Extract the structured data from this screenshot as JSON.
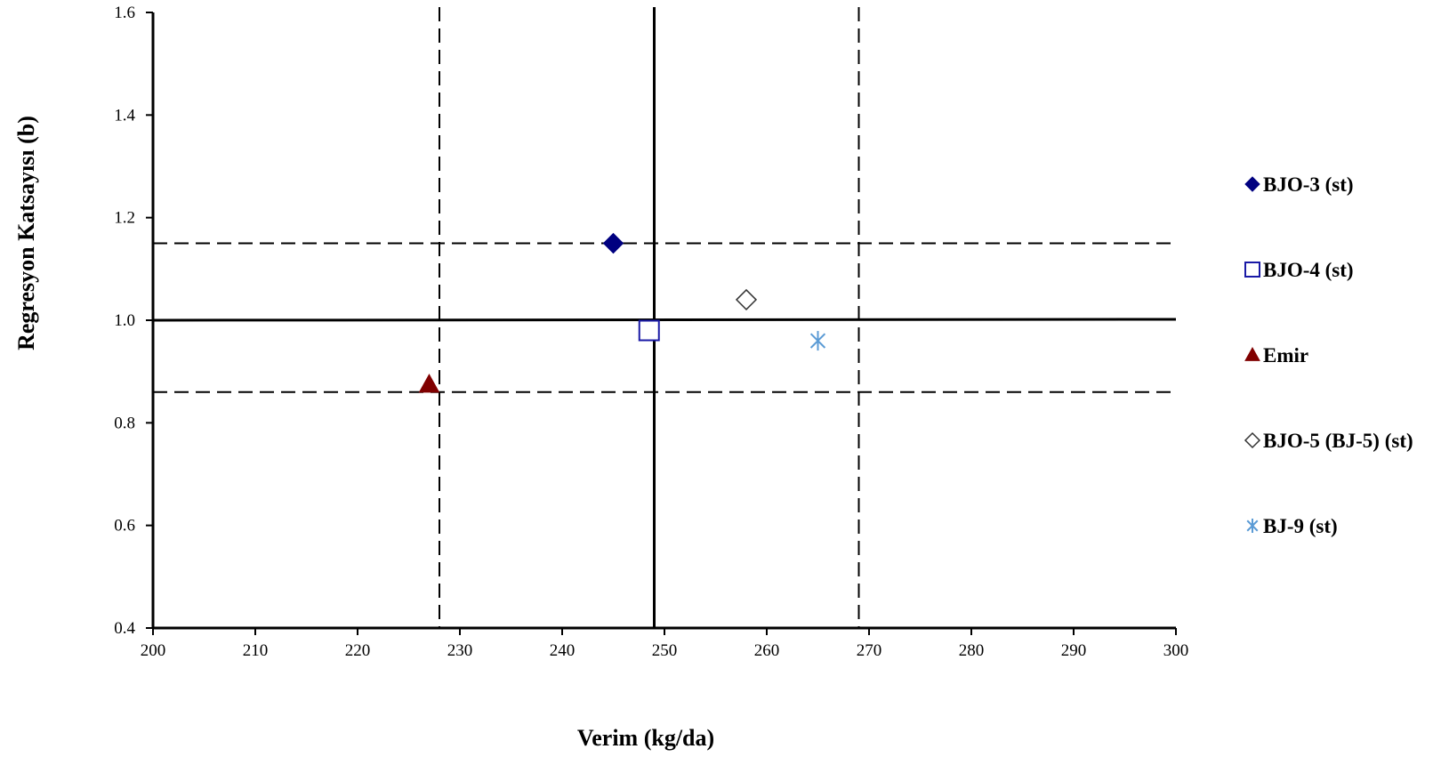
{
  "chart_data": {
    "type": "scatter",
    "title": "",
    "xlabel": "Verim (kg/da)",
    "ylabel": "Regresyon Katsayısı (b)",
    "xlim": [
      200,
      300
    ],
    "ylim": [
      0.4,
      1.6
    ],
    "xticks": [
      "200",
      "210",
      "220",
      "230",
      "240",
      "250",
      "260",
      "270",
      "280",
      "290",
      "300"
    ],
    "yticks": [
      "0.4",
      "0.6",
      "0.8",
      "1.0",
      "1.2",
      "1.4",
      "1.6"
    ],
    "grid": false,
    "legend_position": "right",
    "reference_lines": {
      "vertical_solid": 249,
      "vertical_dashed": [
        228,
        269
      ],
      "horizontal_solid": 1.0,
      "horizontal_dashed": [
        0.86,
        1.15
      ]
    },
    "series": [
      {
        "name": "BJO-3 (st)",
        "marker": "diamond-filled",
        "color": "#000080",
        "x": [
          245
        ],
        "y": [
          1.15
        ]
      },
      {
        "name": "BJO-4 (st)",
        "marker": "square-open",
        "color": "#1a1aa6",
        "x": [
          248.5
        ],
        "y": [
          0.98
        ]
      },
      {
        "name": "Emir",
        "marker": "triangle-filled",
        "color": "#800000",
        "x": [
          227
        ],
        "y": [
          0.875
        ]
      },
      {
        "name": "BJO-5 (BJ-5) (st)",
        "marker": "diamond-open",
        "color": "#333333",
        "x": [
          258
        ],
        "y": [
          1.04
        ]
      },
      {
        "name": "BJ-9 (st)",
        "marker": "star",
        "color": "#5b9bd5",
        "x": [
          265
        ],
        "y": [
          0.96
        ]
      }
    ]
  }
}
